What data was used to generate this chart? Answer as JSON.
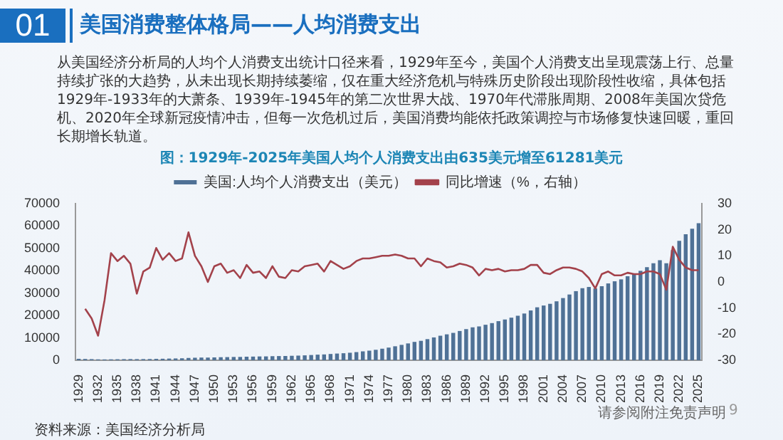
{
  "chart_data": {
    "type": "bar",
    "title": "美国消费整体格局——人均消费支出",
    "subtitle": "图：1929年-2025年美国人均个人消费支出由635美元增至61281美元",
    "annotations": [
      "01",
      "从美国经济分析局的人均个人消费支出统计口径来看，1929年至今，美国个人消费支出呈现震荡上行、总量持续扩张的大趋势，从未出现长期持续萎缩，仅在重大经济危机与特殊历史阶段出现阶段性收缩，具体包括1929年-1933年的大萧条、1939年-1945年的第二次世界大战、1970年代滞胀周期、2008年美国次贷危机、2020年全球新冠疫情冲击，但每一次危机过后，美国消费均能依托政策调控与市场修复快速回暖，重回长期增长轨道。",
      "资料来源：美国经济分析局",
      "请参阅附注免责声明",
      "9"
    ],
    "categories": [
      "1929",
      null,
      null,
      "1932",
      null,
      null,
      "1935",
      null,
      null,
      "1938",
      null,
      null,
      "1941",
      null,
      null,
      "1944",
      null,
      null,
      "1947",
      null,
      null,
      "1950",
      null,
      null,
      "1953",
      null,
      null,
      "1956",
      null,
      null,
      "1959",
      null,
      null,
      "1962",
      null,
      null,
      "1965",
      null,
      null,
      "1968",
      null,
      null,
      "1971",
      null,
      null,
      "1974",
      null,
      null,
      "1977",
      null,
      null,
      "1980",
      null,
      null,
      "1983",
      null,
      null,
      "1986",
      null,
      null,
      "1989",
      null,
      null,
      "1992",
      null,
      null,
      "1995",
      null,
      null,
      "1998",
      null,
      null,
      "2001",
      null,
      null,
      "2004",
      null,
      null,
      "2007",
      null,
      null,
      "2010",
      null,
      null,
      "2013",
      null,
      null,
      "2016",
      null,
      null,
      "2019",
      null,
      null,
      "2022",
      null,
      null,
      "2025"
    ],
    "series": [
      {
        "name": "美国:人均个人消费支出（美元）",
        "color": "#4f7196",
        "values": [
          635,
          570,
          493,
          390,
          364,
          401,
          437,
          484,
          515,
          491,
          511,
          540,
          609,
          664,
          739,
          797,
          869,
          1017,
          1116,
          1194,
          1185,
          1257,
          1352,
          1397,
          1462,
          1478,
          1577,
          1628,
          1693,
          1717,
          1811,
          1866,
          1895,
          1988,
          2066,
          2185,
          2332,
          2494,
          2595,
          2798,
          2983,
          3131,
          3348,
          3630,
          3966,
          4281,
          4667,
          5153,
          5649,
          6239,
          6868,
          7515,
          8196,
          8675,
          9433,
          10197,
          10954,
          11571,
          12225,
          13068,
          13909,
          14701,
          15112,
          15857,
          16601,
          17467,
          18211,
          19025,
          19887,
          20882,
          22248,
          23660,
          24457,
          25217,
          26337,
          27787,
          29379,
          30880,
          32194,
          32752,
          32087,
          33078,
          34329,
          35284,
          36144,
          37533,
          38717,
          39965,
          41569,
          43319,
          44721,
          43350,
          49250,
          53400,
          56300,
          58800,
          61281
        ]
      },
      {
        "name": "同比增速（%，右轴）",
        "type": "line",
        "axis": "y2",
        "color": "#a3424b",
        "values": [
          null,
          -10.3,
          -14,
          -20.6,
          -7,
          11,
          8,
          10,
          7,
          -4.5,
          4,
          5.5,
          13,
          8.5,
          11,
          8,
          9,
          19,
          10,
          6,
          0,
          6,
          7,
          3.5,
          4.5,
          1.5,
          6.5,
          3.5,
          4,
          1.5,
          6,
          2,
          1.5,
          4.5,
          4,
          6,
          6.5,
          7,
          4,
          8,
          6.5,
          5,
          6,
          8,
          9,
          9,
          9.5,
          10,
          10,
          10.5,
          10,
          9,
          9,
          6,
          9,
          8,
          7.5,
          5.5,
          6,
          7,
          6.5,
          5.5,
          2.5,
          5,
          4.5,
          5,
          4,
          4.5,
          4.5,
          5,
          6.5,
          6.5,
          3.5,
          3,
          4.5,
          5.5,
          5.5,
          5,
          4,
          1.5,
          -2.5,
          3,
          4,
          2.5,
          2.5,
          3.5,
          3,
          3,
          4,
          4,
          3,
          -3,
          13.5,
          8.5,
          5.5,
          4.5,
          4.5
        ]
      }
    ],
    "ylim": [
      0,
      70000
    ],
    "yticks": [
      0,
      10000,
      20000,
      30000,
      40000,
      50000,
      60000,
      70000
    ],
    "y2lim": [
      -30,
      30
    ],
    "y2ticks": [
      -30,
      -20,
      -10,
      0,
      10,
      20,
      30
    ],
    "grid": false,
    "legend": "top",
    "marker": "none",
    "line_style": "solid"
  }
}
